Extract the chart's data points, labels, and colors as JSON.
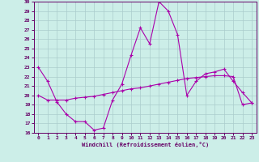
{
  "xlabel": "Windchill (Refroidissement éolien,°C)",
  "background_color": "#cceee8",
  "grid_color": "#aacccc",
  "line_color": "#aa00aa",
  "xlim": [
    -0.5,
    23.5
  ],
  "ylim": [
    16,
    30
  ],
  "yticks": [
    16,
    17,
    18,
    19,
    20,
    21,
    22,
    23,
    24,
    25,
    26,
    27,
    28,
    29,
    30
  ],
  "xticks": [
    0,
    1,
    2,
    3,
    4,
    5,
    6,
    7,
    8,
    9,
    10,
    11,
    12,
    13,
    14,
    15,
    16,
    17,
    18,
    19,
    20,
    21,
    22,
    23
  ],
  "line1_x": [
    0,
    1,
    2,
    3,
    4,
    5,
    6,
    7,
    8,
    9,
    10,
    11,
    12,
    13,
    14,
    15,
    16,
    17,
    18,
    19,
    20,
    21,
    22,
    23
  ],
  "line1_y": [
    23.0,
    21.5,
    19.3,
    18.0,
    17.2,
    17.2,
    16.3,
    16.5,
    19.5,
    21.2,
    24.3,
    27.2,
    25.5,
    30.0,
    29.0,
    26.5,
    20.0,
    21.5,
    22.3,
    22.5,
    22.8,
    21.5,
    20.3,
    19.2
  ],
  "line2_x": [
    0,
    1,
    2,
    3,
    4,
    5,
    6,
    7,
    8,
    9,
    10,
    11,
    12,
    13,
    14,
    15,
    16,
    17,
    18,
    19,
    20,
    21,
    22,
    23
  ],
  "line2_y": [
    20.0,
    19.5,
    19.5,
    19.5,
    19.7,
    19.8,
    19.9,
    20.1,
    20.3,
    20.5,
    20.7,
    20.8,
    21.0,
    21.2,
    21.4,
    21.6,
    21.8,
    21.9,
    22.0,
    22.1,
    22.1,
    22.0,
    19.0,
    19.2
  ]
}
